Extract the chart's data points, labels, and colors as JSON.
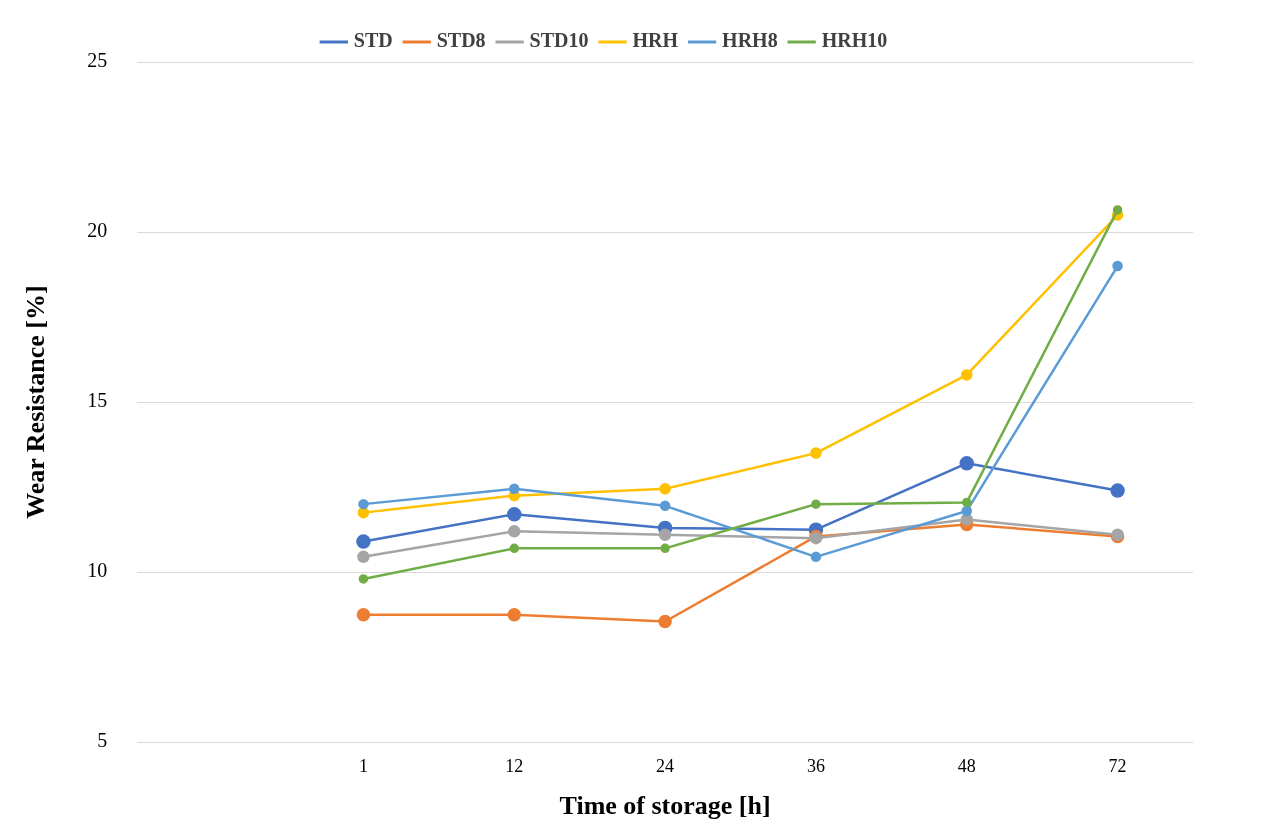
{
  "chart_data": {
    "type": "line",
    "xlabel": "Time of storage [h]",
    "ylabel": "Wear Resistance [%]",
    "categories": [
      null,
      "1",
      "12",
      "24",
      "36",
      "48",
      "72"
    ],
    "series": [
      {
        "name": "STD",
        "color": "#4472c4",
        "values": [
          null,
          10.9,
          11.7,
          11.3,
          11.25,
          13.2,
          12.4
        ]
      },
      {
        "name": "STD8",
        "color": "#ed7d31",
        "values": [
          null,
          8.75,
          8.75,
          8.55,
          11.05,
          11.4,
          11.05
        ]
      },
      {
        "name": "STD10",
        "color": "#a5a5a5",
        "values": [
          null,
          10.45,
          11.2,
          11.1,
          11.0,
          11.55,
          11.1
        ]
      },
      {
        "name": "HRH",
        "color": "#ffc000",
        "values": [
          null,
          11.75,
          12.25,
          12.45,
          13.5,
          15.8,
          20.5
        ]
      },
      {
        "name": "HRH8",
        "color": "#5b9bd5",
        "values": [
          null,
          12.0,
          12.45,
          11.95,
          10.45,
          11.8,
          19.0
        ]
      },
      {
        "name": "HRH10",
        "color": "#70ad47",
        "values": [
          null,
          9.8,
          10.7,
          10.7,
          12.0,
          12.05,
          20.65
        ]
      }
    ],
    "ylim": [
      5,
      25
    ],
    "yticks": [
      5,
      10,
      15,
      20,
      25
    ],
    "grid": "y",
    "legend": "top",
    "marker": "circle",
    "line_style": "solid"
  }
}
